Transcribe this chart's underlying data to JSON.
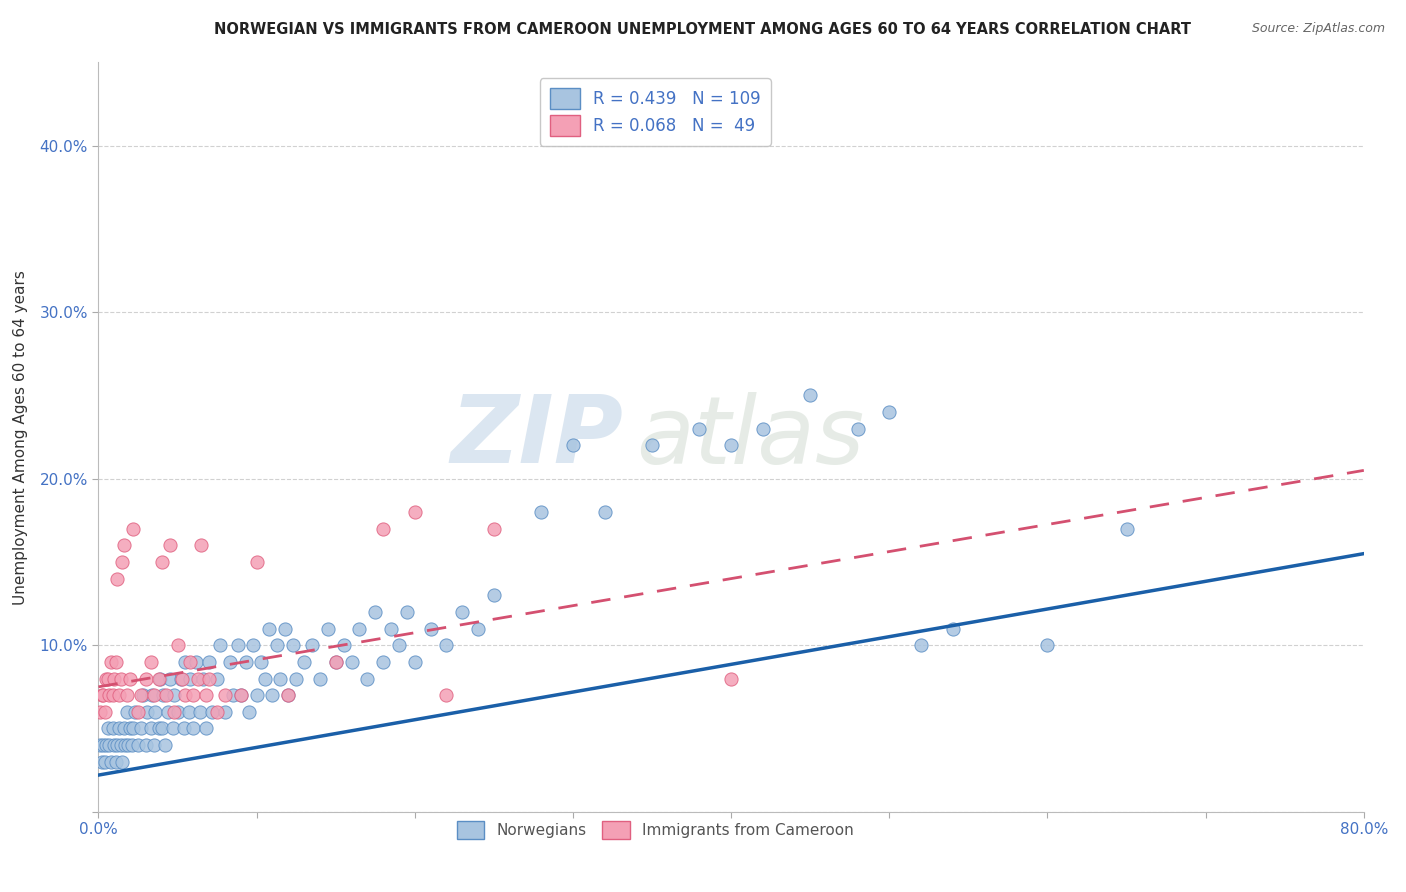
{
  "title": "NORWEGIAN VS IMMIGRANTS FROM CAMEROON UNEMPLOYMENT AMONG AGES 60 TO 64 YEARS CORRELATION CHART",
  "source": "Source: ZipAtlas.com",
  "ylabel": "Unemployment Among Ages 60 to 64 years",
  "xlim": [
    0.0,
    0.8
  ],
  "ylim": [
    0.0,
    0.45
  ],
  "legend_r_norwegian": "0.439",
  "legend_n_norwegian": "109",
  "legend_r_cameroon": "0.068",
  "legend_n_cameroon": " 49",
  "norwegian_color": "#a8c4e0",
  "norwegian_edge": "#5b8ec4",
  "cameroon_color": "#f4a0b5",
  "cameroon_edge": "#e06080",
  "trend_norwegian_color": "#1a5fa8",
  "trend_cameroon_color": "#d45070",
  "background_color": "#ffffff",
  "watermark_zip": "ZIP",
  "watermark_atlas": "atlas",
  "title_fontsize": 10.5,
  "tick_fontsize": 11,
  "norwegians_x": [
    0.001,
    0.002,
    0.003,
    0.004,
    0.005,
    0.006,
    0.007,
    0.008,
    0.009,
    0.01,
    0.011,
    0.012,
    0.013,
    0.014,
    0.015,
    0.016,
    0.017,
    0.018,
    0.019,
    0.02,
    0.021,
    0.022,
    0.023,
    0.025,
    0.027,
    0.028,
    0.03,
    0.031,
    0.033,
    0.034,
    0.035,
    0.036,
    0.038,
    0.039,
    0.04,
    0.041,
    0.042,
    0.044,
    0.045,
    0.047,
    0.048,
    0.05,
    0.052,
    0.054,
    0.055,
    0.057,
    0.058,
    0.06,
    0.062,
    0.064,
    0.066,
    0.068,
    0.07,
    0.072,
    0.075,
    0.077,
    0.08,
    0.083,
    0.085,
    0.088,
    0.09,
    0.093,
    0.095,
    0.098,
    0.1,
    0.103,
    0.105,
    0.108,
    0.11,
    0.113,
    0.115,
    0.118,
    0.12,
    0.123,
    0.125,
    0.13,
    0.135,
    0.14,
    0.145,
    0.15,
    0.155,
    0.16,
    0.165,
    0.17,
    0.175,
    0.18,
    0.185,
    0.19,
    0.195,
    0.2,
    0.21,
    0.22,
    0.23,
    0.24,
    0.25,
    0.28,
    0.3,
    0.32,
    0.35,
    0.38,
    0.4,
    0.42,
    0.45,
    0.48,
    0.5,
    0.52,
    0.54,
    0.6,
    0.65
  ],
  "norwegians_y": [
    0.04,
    0.03,
    0.04,
    0.03,
    0.04,
    0.05,
    0.04,
    0.03,
    0.05,
    0.04,
    0.03,
    0.04,
    0.05,
    0.04,
    0.03,
    0.05,
    0.04,
    0.06,
    0.04,
    0.05,
    0.04,
    0.05,
    0.06,
    0.04,
    0.05,
    0.07,
    0.04,
    0.06,
    0.05,
    0.07,
    0.04,
    0.06,
    0.05,
    0.08,
    0.05,
    0.07,
    0.04,
    0.06,
    0.08,
    0.05,
    0.07,
    0.06,
    0.08,
    0.05,
    0.09,
    0.06,
    0.08,
    0.05,
    0.09,
    0.06,
    0.08,
    0.05,
    0.09,
    0.06,
    0.08,
    0.1,
    0.06,
    0.09,
    0.07,
    0.1,
    0.07,
    0.09,
    0.06,
    0.1,
    0.07,
    0.09,
    0.08,
    0.11,
    0.07,
    0.1,
    0.08,
    0.11,
    0.07,
    0.1,
    0.08,
    0.09,
    0.1,
    0.08,
    0.11,
    0.09,
    0.1,
    0.09,
    0.11,
    0.08,
    0.12,
    0.09,
    0.11,
    0.1,
    0.12,
    0.09,
    0.11,
    0.1,
    0.12,
    0.11,
    0.13,
    0.18,
    0.22,
    0.18,
    0.22,
    0.23,
    0.22,
    0.23,
    0.25,
    0.23,
    0.24,
    0.1,
    0.11,
    0.1,
    0.17
  ],
  "cameroon_x": [
    0.001,
    0.002,
    0.003,
    0.004,
    0.005,
    0.006,
    0.007,
    0.008,
    0.009,
    0.01,
    0.011,
    0.012,
    0.013,
    0.014,
    0.015,
    0.016,
    0.018,
    0.02,
    0.022,
    0.025,
    0.027,
    0.03,
    0.033,
    0.035,
    0.038,
    0.04,
    0.043,
    0.045,
    0.048,
    0.05,
    0.053,
    0.055,
    0.058,
    0.06,
    0.063,
    0.065,
    0.068,
    0.07,
    0.075,
    0.08,
    0.09,
    0.1,
    0.12,
    0.15,
    0.18,
    0.2,
    0.22,
    0.25,
    0.4
  ],
  "cameroon_y": [
    0.06,
    0.07,
    0.07,
    0.06,
    0.08,
    0.08,
    0.07,
    0.09,
    0.07,
    0.08,
    0.09,
    0.14,
    0.07,
    0.08,
    0.15,
    0.16,
    0.07,
    0.08,
    0.17,
    0.06,
    0.07,
    0.08,
    0.09,
    0.07,
    0.08,
    0.15,
    0.07,
    0.16,
    0.06,
    0.1,
    0.08,
    0.07,
    0.09,
    0.07,
    0.08,
    0.16,
    0.07,
    0.08,
    0.06,
    0.07,
    0.07,
    0.15,
    0.07,
    0.09,
    0.17,
    0.18,
    0.07,
    0.17,
    0.08
  ],
  "norw_trend_x0": 0.0,
  "norw_trend_y0": 0.022,
  "norw_trend_x1": 0.8,
  "norw_trend_y1": 0.155,
  "cam_trend_x0": 0.0,
  "cam_trend_y0": 0.075,
  "cam_trend_x1": 0.8,
  "cam_trend_y1": 0.205
}
